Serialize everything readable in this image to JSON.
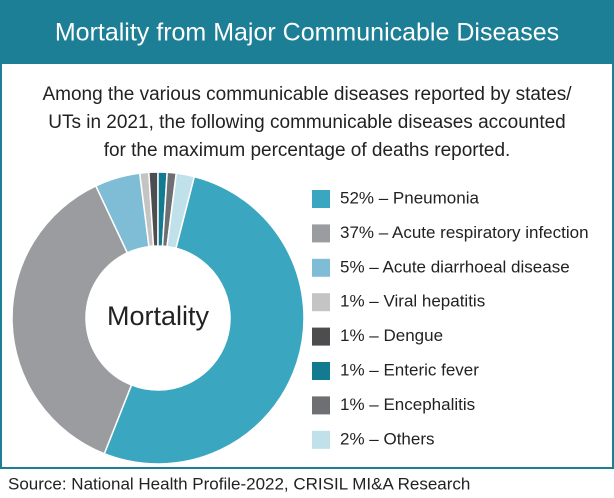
{
  "chart_data": {
    "type": "pie",
    "title": "Mortality from Major Communicable Diseases",
    "subtitle_lines": [
      "Among the various communicable diseases reported by states/",
      "UTs in 2021, the following communicable diseases accounted",
      "for the maximum percentage of deaths reported."
    ],
    "center_label": "Mortality",
    "categories": [
      "52% – Pneumonia",
      "37% – Acute respiratory infection",
      "5% – Acute diarrhoeal disease",
      "1% – Viral hepatitis",
      "1% – Dengue",
      "1% – Enteric fever",
      "1% – Encephalitis",
      "2% – Others"
    ],
    "values": [
      52,
      37,
      5,
      1,
      1,
      1,
      1,
      2
    ],
    "colors": [
      "#3aa6c0",
      "#9b9c9f",
      "#7fbcd5",
      "#c4c4c4",
      "#4d4d4f",
      "#127b90",
      "#6e6f72",
      "#c0e0ea"
    ],
    "source": "Source: National Health Profile-2022, CRISIL MI&A Research"
  }
}
